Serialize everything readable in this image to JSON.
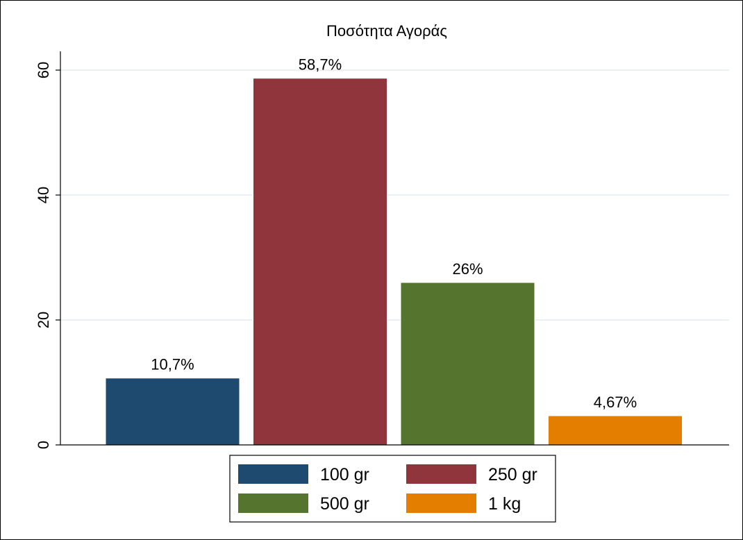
{
  "chart_data": {
    "type": "bar",
    "title": "Ποσότητα Αγοράς",
    "xlabel": "",
    "ylabel": "",
    "ylim": [
      0,
      63
    ],
    "yticks": [
      0,
      20,
      40,
      60
    ],
    "yticks_labels": [
      "0",
      "20",
      "40",
      "60"
    ],
    "grid": true,
    "legend_placement": "bottom",
    "series": [
      {
        "name": "100 gr",
        "value": 10.7,
        "label": "10,7%",
        "color": "#1f4a70"
      },
      {
        "name": "250 gr",
        "value": 58.7,
        "label": "58,7%",
        "color": "#90353b"
      },
      {
        "name": "500 gr",
        "value": 26.0,
        "label": "26%",
        "color": "#55752f"
      },
      {
        "name": "1 kg",
        "value": 4.67,
        "label": "4,67%",
        "color": "#e37e00"
      }
    ]
  }
}
